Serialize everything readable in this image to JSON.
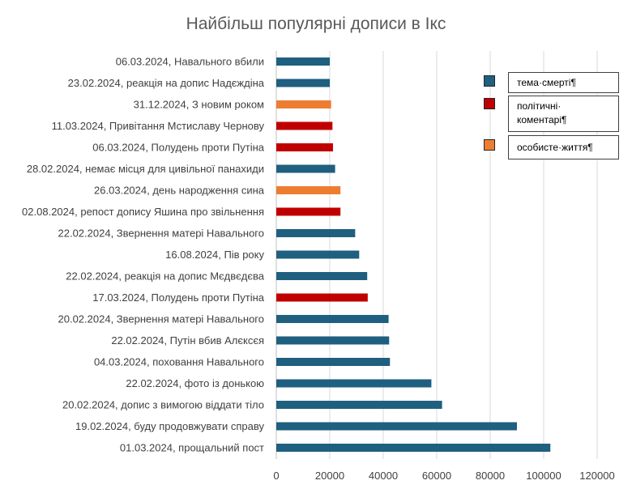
{
  "chart_data": {
    "type": "bar",
    "orientation": "horizontal",
    "title": "Найбільш популярні дописи в Ікс",
    "categories": [
      "06.03.2024, Навального вбили",
      "23.02.2024, реакція на допис Надєждіна",
      "31.12.2024, З новим роком",
      "11.03.2024, Привітання Мстиславу Чернову",
      "06.03.2024, Полудень проти Путіна",
      "28.02.2024, немає місця для цивільної панахиди",
      "26.03.2024, день народження сина",
      "02.08.2024, репост допису  Яшина про звільнення",
      "22.02.2024, Звернення матері Навального",
      "16.08.2024, Пів року",
      "22.02.2024, реакція на допис Мєдвєдєва",
      "17.03.2024, Полудень проти Путіна",
      "20.02.2024, Звернення матері Навального",
      "22.02.2024, Путін вбив Алєксєя",
      "04.03.2024, поховання Навального",
      "22.02.2024, фото із донькою",
      "20.02.2024, допис з вимогою віддати тіло",
      "19.02.2024, буду продовжувати справу",
      "01.03.2024, прощальний пост"
    ],
    "values": [
      20000,
      20000,
      20500,
      21000,
      21200,
      22000,
      24000,
      24000,
      29500,
      31000,
      34000,
      34200,
      42000,
      42200,
      42500,
      58000,
      62000,
      90000,
      102500
    ],
    "groups": [
      0,
      0,
      2,
      1,
      1,
      0,
      2,
      1,
      0,
      0,
      0,
      1,
      0,
      0,
      0,
      0,
      0,
      0,
      0
    ],
    "legend": [
      {
        "label": "тема·смерті¶",
        "color": "#1F5F7F"
      },
      {
        "label": "політичні·\nкоментарі¶",
        "color": "#C00000"
      },
      {
        "label": "особисте·життя¶",
        "color": "#ED7D31"
      }
    ],
    "xticks": [
      "0",
      "20000",
      "40000",
      "60000",
      "80000",
      "100000",
      "120000"
    ],
    "xlim": [
      0,
      120000
    ],
    "grid": "vertical",
    "legend_position": "right"
  }
}
